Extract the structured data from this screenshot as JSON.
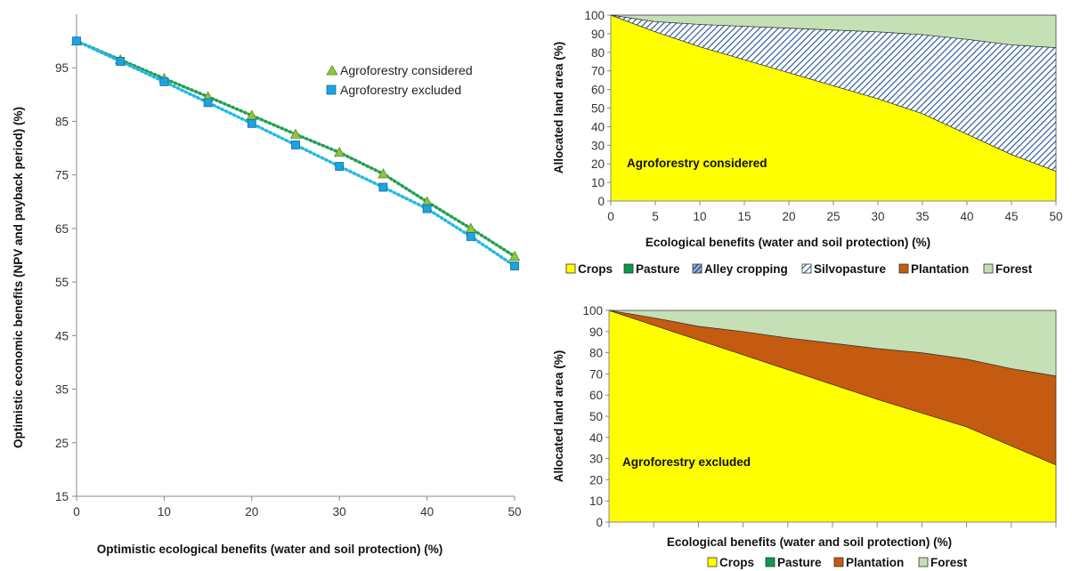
{
  "chart_data": [
    {
      "type": "scatter",
      "title": "",
      "xlabel": "Optimistic ecological benefits (water and soil protection) (%)",
      "ylabel": "Optimistic economic benefits (NPV and payback period) (%)",
      "xlim": [
        0,
        50
      ],
      "ylim": [
        15,
        105
      ],
      "xticks": [
        0,
        10,
        20,
        30,
        40,
        50
      ],
      "yticks": [
        15,
        25,
        35,
        45,
        55,
        65,
        75,
        85,
        95
      ],
      "legend_position": "top-right",
      "series": [
        {
          "name": "Agroforestry considered",
          "marker": "triangle",
          "color": "#8dc63f",
          "line_color": "#22a052",
          "x": [
            0,
            5,
            10,
            15,
            20,
            25,
            30,
            35,
            40,
            45,
            50
          ],
          "y": [
            100,
            96.5,
            93,
            89.6,
            86.1,
            82.6,
            79.2,
            75.2,
            70,
            65,
            59.8
          ]
        },
        {
          "name": "Agroforestry excluded",
          "marker": "square",
          "color": "#1ca3e0",
          "line_color": "#22b8e8",
          "x": [
            0,
            5,
            10,
            15,
            20,
            25,
            30,
            35,
            40,
            45,
            50
          ],
          "y": [
            100,
            96.2,
            92.4,
            88.5,
            84.6,
            80.6,
            76.6,
            72.7,
            68.7,
            63.5,
            58
          ]
        }
      ]
    },
    {
      "type": "area",
      "stacked": true,
      "panel_label": "Agroforestry considered",
      "xlabel": "Ecological benefits (water and soil protection) (%)",
      "ylabel": "Allocated land area (%)",
      "xlim": [
        0,
        50
      ],
      "ylim": [
        0,
        100
      ],
      "xticks": [
        0,
        5,
        10,
        15,
        20,
        25,
        30,
        35,
        40,
        45,
        50
      ],
      "yticks": [
        0,
        10,
        20,
        30,
        40,
        50,
        60,
        70,
        80,
        90,
        100
      ],
      "x": [
        0,
        5,
        10,
        15,
        20,
        25,
        30,
        35,
        40,
        45,
        50
      ],
      "series": [
        {
          "name": "Crops",
          "color": "#ffff00",
          "values": [
            100,
            91,
            83,
            76,
            69,
            62,
            55,
            47,
            36,
            25,
            16
          ]
        },
        {
          "name": "Pasture",
          "color": "#0b9a48",
          "values": [
            0,
            0,
            0,
            0,
            0,
            0,
            0,
            0,
            0,
            0,
            0
          ]
        },
        {
          "name": "Alley cropping",
          "color": "#1f3c6e",
          "values": [
            0,
            0,
            0,
            0,
            0,
            0,
            0,
            0,
            0,
            0,
            0
          ]
        },
        {
          "name": "Silvopasture",
          "color": "#8fb4d9",
          "values": [
            0,
            5.5,
            12,
            18,
            24,
            30,
            36,
            42.5,
            51,
            59,
            66.5
          ]
        },
        {
          "name": "Plantation",
          "color": "#c55a11",
          "values": [
            0,
            0,
            0,
            0,
            0,
            0,
            0,
            0,
            0,
            0,
            0
          ]
        },
        {
          "name": "Forest",
          "color": "#c5e0b4",
          "values": [
            0,
            3.5,
            5,
            6,
            7,
            8,
            9,
            10.5,
            13,
            16,
            17.5
          ]
        }
      ],
      "legend": [
        "Crops",
        "Pasture",
        "Alley cropping",
        "Silvopasture",
        "Plantation",
        "Forest"
      ]
    },
    {
      "type": "area",
      "stacked": true,
      "panel_label": "Agroforestry excluded",
      "xlabel": "Ecological benefits (water and soil protection) (%)",
      "ylabel": "Allocated land area (%)",
      "xlim": [
        0,
        50
      ],
      "ylim": [
        0,
        100
      ],
      "xticks": [],
      "yticks": [
        0,
        10,
        20,
        30,
        40,
        50,
        60,
        70,
        80,
        90,
        100
      ],
      "x": [
        0,
        5,
        10,
        15,
        20,
        25,
        30,
        35,
        40,
        45,
        50
      ],
      "series": [
        {
          "name": "Crops",
          "color": "#ffff00",
          "values": [
            100,
            93,
            86,
            79,
            72,
            65,
            58,
            51.5,
            45,
            36,
            27
          ]
        },
        {
          "name": "Pasture",
          "color": "#0b9a48",
          "values": [
            0,
            0,
            0,
            0,
            0,
            0,
            0,
            0,
            0,
            0,
            0
          ]
        },
        {
          "name": "Plantation",
          "color": "#c55a11",
          "values": [
            0,
            3.5,
            6.5,
            11,
            15,
            19.5,
            24,
            28.5,
            32,
            36.5,
            42
          ]
        },
        {
          "name": "Forest",
          "color": "#c5e0b4",
          "values": [
            0,
            3.5,
            7.5,
            10,
            13,
            15.5,
            18,
            20,
            23,
            27.5,
            31
          ]
        }
      ],
      "legend": [
        "Crops",
        "Pasture",
        "Plantation",
        "Forest"
      ]
    }
  ]
}
